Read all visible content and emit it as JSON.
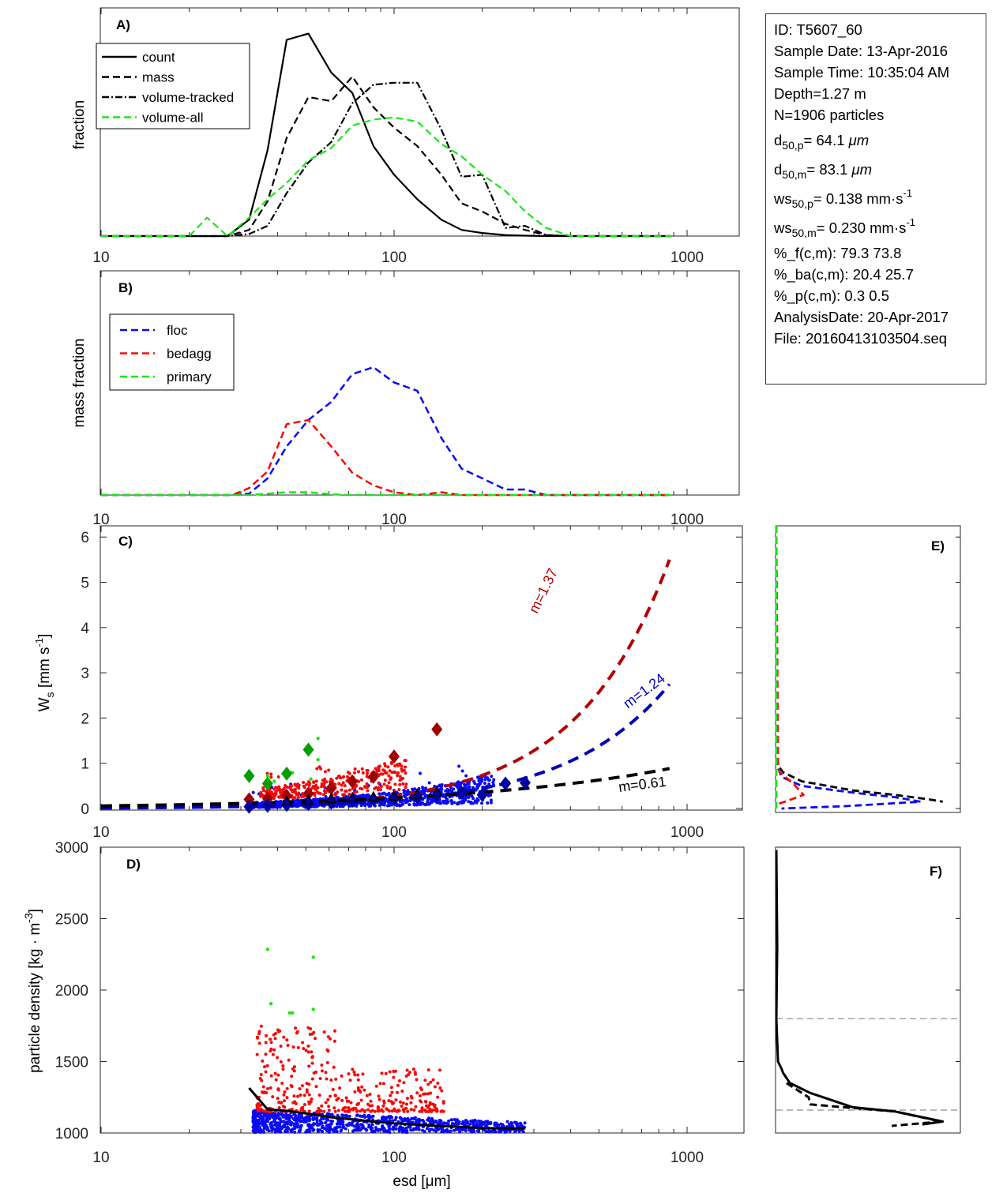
{
  "info": {
    "id": "ID: T5607_60",
    "sample_date": "Sample Date: 13-Apr-2016",
    "sample_time": "Sample Time: 10:35:04 AM",
    "depth": "Depth=1.27 m",
    "n": "N=1906 particles",
    "d50p": {
      "pre": "d",
      "sub": "50,p",
      "post": "=  64.1 ",
      "unit": "μm"
    },
    "d50m": {
      "pre": "d",
      "sub": "50,m",
      "post": "=  83.1 ",
      "unit": "μm"
    },
    "ws50p": {
      "pre": "ws",
      "sub": "50,p",
      "post": "= 0.138 mm·s",
      "sup": "-1"
    },
    "ws50m": {
      "pre": "ws",
      "sub": "50,m",
      "post": "= 0.230 mm·s",
      "sup": "-1"
    },
    "pct_f": "%_f(c,m): 79.3 73.8",
    "pct_ba": "%_ba(c,m): 20.4 25.7",
    "pct_p": "%_p(c,m): 0.3 0.5",
    "analysis_date": "AnalysisDate: 20-Apr-2017",
    "file": "File: 20160413103504.seq"
  },
  "chart_data": [
    {
      "panel": "A)",
      "type": "line",
      "xscale": "log",
      "xlim": [
        10,
        1500
      ],
      "ylim": [
        0,
        1
      ],
      "xticks": [
        10,
        100,
        1000
      ],
      "xtick_labels": [
        "10",
        "100",
        "1000"
      ],
      "xlabel": "",
      "ylabel": "fraction",
      "legend_position": "top-left",
      "series": [
        {
          "name": "count",
          "color": "#000000",
          "style": "solid",
          "x": [
            10,
            20,
            27,
            32,
            37,
            43,
            51,
            61,
            72,
            85,
            100,
            120,
            145,
            170,
            200,
            240,
            280,
            330,
            400,
            880
          ],
          "y": [
            0,
            0,
            0,
            0.08,
            0.42,
            0.96,
            0.99,
            0.8,
            0.7,
            0.44,
            0.3,
            0.18,
            0.08,
            0.03,
            0.015,
            0.005,
            0.002,
            0,
            0,
            0
          ]
        },
        {
          "name": "mass",
          "color": "#000000",
          "style": "dash",
          "x": [
            10,
            20,
            27,
            32,
            37,
            43,
            51,
            61,
            72,
            85,
            100,
            120,
            145,
            170,
            200,
            240,
            280,
            330,
            400,
            880
          ],
          "y": [
            0,
            0,
            0,
            0.03,
            0.17,
            0.48,
            0.68,
            0.66,
            0.78,
            0.63,
            0.53,
            0.44,
            0.3,
            0.16,
            0.12,
            0.06,
            0.03,
            0.005,
            0,
            0
          ]
        },
        {
          "name": "volume-tracked",
          "color": "#000000",
          "style": "dashdot",
          "x": [
            10,
            20,
            27,
            32,
            37,
            43,
            51,
            61,
            72,
            85,
            100,
            120,
            145,
            170,
            200,
            240,
            280,
            330,
            400,
            880
          ],
          "y": [
            0,
            0,
            0,
            0.01,
            0.05,
            0.21,
            0.36,
            0.46,
            0.65,
            0.74,
            0.75,
            0.75,
            0.52,
            0.29,
            0.3,
            0.04,
            0.05,
            0.005,
            0,
            0
          ]
        },
        {
          "name": "volume-all",
          "color": "#19e619",
          "style": "dash",
          "x": [
            10,
            20,
            23,
            27,
            32,
            37,
            43,
            51,
            61,
            72,
            85,
            100,
            120,
            145,
            170,
            200,
            240,
            280,
            330,
            400,
            880
          ],
          "y": [
            0,
            0,
            0.09,
            0,
            0.09,
            0.18,
            0.26,
            0.37,
            0.43,
            0.54,
            0.57,
            0.58,
            0.56,
            0.45,
            0.39,
            0.3,
            0.22,
            0.12,
            0.04,
            0,
            0
          ]
        }
      ]
    },
    {
      "panel": "B)",
      "type": "line",
      "xscale": "log",
      "xlim": [
        10,
        1500
      ],
      "ylim": [
        0,
        1
      ],
      "xticks": [
        10,
        100,
        1000
      ],
      "xtick_labels": [
        "10",
        "100",
        "1000"
      ],
      "ylabel": "mass fraction",
      "legend_position": "top-left",
      "series": [
        {
          "name": "floc",
          "color": "#0a0af5",
          "style": "dash",
          "x": [
            10,
            28,
            32,
            37,
            43,
            51,
            61,
            72,
            85,
            100,
            120,
            145,
            170,
            200,
            240,
            280,
            330,
            400,
            880
          ],
          "y": [
            0,
            0,
            0.01,
            0.12,
            0.35,
            0.54,
            0.67,
            0.87,
            0.92,
            0.81,
            0.75,
            0.41,
            0.19,
            0.12,
            0.04,
            0.04,
            0,
            0,
            0
          ]
        },
        {
          "name": "bedagg",
          "color": "#f50a0a",
          "style": "dash",
          "x": [
            10,
            28,
            32,
            37,
            43,
            51,
            61,
            72,
            85,
            100,
            120,
            145,
            170,
            200,
            240,
            280,
            330,
            400,
            880
          ],
          "y": [
            0,
            0,
            0.05,
            0.17,
            0.51,
            0.54,
            0.35,
            0.16,
            0.07,
            0.02,
            0,
            0.02,
            0,
            0,
            0,
            0,
            0,
            0,
            0
          ]
        },
        {
          "name": "primary",
          "color": "#19e619",
          "style": "dash",
          "x": [
            10,
            32,
            37,
            43,
            51,
            61,
            72,
            100,
            880
          ],
          "y": [
            0,
            0,
            0.01,
            0.02,
            0.02,
            0.005,
            0,
            0,
            0
          ]
        }
      ]
    },
    {
      "panel": "C)",
      "type": "scatter",
      "xscale": "log",
      "xlim": [
        10,
        1500
      ],
      "ylim": [
        -0.05,
        6.25
      ],
      "xticks": [
        10,
        100,
        1000
      ],
      "xtick_labels": [
        "10",
        "100",
        "1000"
      ],
      "yticks": [
        0,
        1,
        2,
        3,
        4,
        5,
        6
      ],
      "ytick_labels": [
        "0",
        "1",
        "2",
        "3",
        "4",
        "5",
        "6"
      ],
      "ylabel": "W_s [mm s^-1]",
      "fit_curves": [
        {
          "name": "bedagg fit",
          "label": "m=1.37",
          "color": "#b40000",
          "coef": 0.000516,
          "exponent": 1.37
        },
        {
          "name": "floc fit",
          "label": "m=1.24",
          "color": "#0000b4",
          "coef": 0.000621,
          "exponent": 1.24
        },
        {
          "name": "all fit",
          "label": "m=0.61",
          "color": "#000000",
          "coef": 0.0142,
          "exponent": 0.61
        }
      ],
      "binned_means": [
        {
          "name": "primary",
          "color": "#00a000",
          "x": [
            32,
            37,
            43,
            51
          ],
          "y": [
            0.72,
            0.55,
            0.77,
            1.3
          ]
        },
        {
          "name": "bedagg",
          "color": "#a00000",
          "x": [
            32,
            37,
            43,
            51,
            61,
            72,
            85,
            100,
            140
          ],
          "y": [
            0.2,
            0.22,
            0.28,
            0.33,
            0.45,
            0.6,
            0.7,
            1.15,
            1.75
          ]
        },
        {
          "name": "floc",
          "color": "#0000a0",
          "x": [
            32,
            37,
            43,
            51,
            61,
            72,
            85,
            100,
            120,
            140,
            170,
            200,
            240,
            280
          ],
          "y": [
            0.04,
            0.06,
            0.08,
            0.1,
            0.13,
            0.17,
            0.2,
            0.22,
            0.25,
            0.3,
            0.35,
            0.3,
            0.55,
            0.57
          ]
        },
        {
          "name": "all",
          "color": "#000000",
          "x": [
            43,
            51,
            61,
            72,
            85,
            100,
            120,
            140
          ],
          "y": [
            0.14,
            0.17,
            0.2,
            0.22,
            0.24,
            0.26,
            0.3,
            0.35
          ]
        }
      ],
      "scatter_groups": [
        {
          "name": "floc",
          "color": "#0a0af5",
          "x_range": [
            33,
            220
          ],
          "y_range": [
            0.0,
            0.9
          ],
          "count": 1511
        },
        {
          "name": "bedagg",
          "color": "#f50a0a",
          "x_range": [
            35,
            110
          ],
          "y_range": [
            0.1,
            1.45
          ],
          "count": 389
        },
        {
          "name": "primary",
          "color": "#19e619",
          "x_range": [
            36,
            55
          ],
          "y_range": [
            0.6,
            1.55
          ],
          "count": 6
        }
      ]
    },
    {
      "panel": "D)",
      "type": "scatter",
      "xscale": "log",
      "xlim": [
        10,
        1500
      ],
      "ylim": [
        1000,
        3000
      ],
      "xticks": [
        10,
        100,
        1000
      ],
      "xtick_labels": [
        "10",
        "100",
        "1000"
      ],
      "yticks": [
        1000,
        1500,
        2000,
        2500,
        3000
      ],
      "ytick_labels": [
        "1000",
        "1500",
        "2000",
        "2500",
        "3000"
      ],
      "xlabel": "esd [μm]",
      "ylabel": "particle density [kg · m^-3]",
      "median_line": {
        "color": "#000000",
        "x": [
          32,
          37,
          43,
          51,
          61,
          72,
          85,
          100,
          120,
          140,
          170,
          200,
          240,
          280
        ],
        "y": [
          1315,
          1165,
          1155,
          1135,
          1110,
          1095,
          1080,
          1068,
          1058,
          1050,
          1042,
          1034,
          1032,
          1032
        ]
      },
      "scatter_groups": [
        {
          "name": "floc",
          "color": "#0a0af5",
          "x_range": [
            33,
            280
          ],
          "y_range": [
            1005,
            1150
          ]
        },
        {
          "name": "bedagg",
          "color": "#f50a0a",
          "x_range": [
            34,
            150
          ],
          "y_range": [
            1150,
            1760
          ]
        },
        {
          "name": "primary",
          "color": "#19e619",
          "points": [
            [
              37,
              2285
            ],
            [
              38,
              1905
            ],
            [
              44,
              1840
            ],
            [
              45,
              1840
            ],
            [
              53,
              2230
            ],
            [
              53,
              1865
            ]
          ]
        }
      ]
    },
    {
      "panel": "E)",
      "type": "line",
      "ylim": [
        -0.05,
        6.25
      ],
      "description": "settling velocity distribution (horizontal = fraction)",
      "series": [
        {
          "name": "all",
          "color": "#000000",
          "style": "dash",
          "ws": [
            6.25,
            1.0,
            0.8,
            0.6,
            0.4,
            0.3,
            0.2,
            0.15
          ],
          "frac": [
            0,
            0,
            0.04,
            0.15,
            0.45,
            0.7,
            0.9,
            0.98
          ]
        },
        {
          "name": "floc",
          "color": "#0a0af5",
          "style": "dash",
          "ws": [
            6.25,
            1.0,
            0.7,
            0.5,
            0.35,
            0.25,
            0.15,
            0.05,
            0.0
          ],
          "frac": [
            0,
            0,
            0.03,
            0.15,
            0.45,
            0.7,
            0.85,
            0.4,
            0.03
          ]
        },
        {
          "name": "bedagg",
          "color": "#f50a0a",
          "style": "dash",
          "ws": [
            6.25,
            1.0,
            0.8,
            0.55,
            0.3,
            0.15,
            0.1
          ],
          "frac": [
            0,
            0.01,
            0.02,
            0.1,
            0.16,
            0.05,
            0.01
          ]
        },
        {
          "name": "primary",
          "color": "#19e619",
          "style": "dash",
          "ws": [
            6.25,
            0.0
          ],
          "frac": [
            0,
            0
          ]
        }
      ]
    },
    {
      "panel": "F)",
      "type": "line",
      "ylim": [
        1000,
        3000
      ],
      "description": "density distribution (horizontal = fraction)",
      "reference_lines": [
        1800,
        1160
      ],
      "reference_color": "#a0a0a0",
      "series": [
        {
          "name": "count",
          "color": "#000000",
          "style": "solid",
          "rho": [
            2980,
            2300,
            1800,
            1500,
            1450,
            1420,
            1350,
            1280,
            1180,
            1150,
            1080,
            1060
          ],
          "frac": [
            0,
            0.005,
            0,
            0.01,
            0.03,
            0.04,
            0.08,
            0.2,
            0.45,
            0.7,
            0.98,
            0.86
          ]
        },
        {
          "name": "mass",
          "color": "#000000",
          "style": "dash",
          "rho": [
            1350,
            1250,
            1200,
            1150,
            1080,
            1050
          ],
          "frac": [
            0.06,
            0.19,
            0.2,
            0.7,
            0.97,
            0.68
          ]
        }
      ]
    }
  ]
}
